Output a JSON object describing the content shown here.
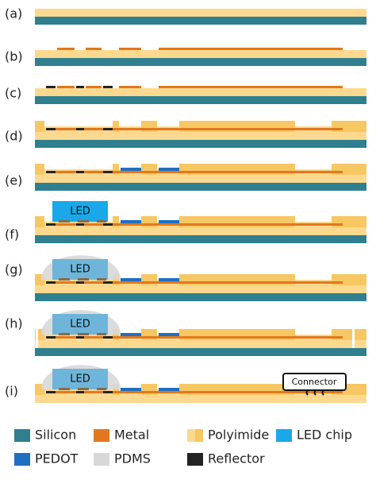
{
  "steps": [
    "(a)",
    "(b)",
    "(c)",
    "(d)",
    "(e)",
    "(f)",
    "(g)",
    "(h)",
    "(i)"
  ],
  "chip_labels": [
    "LED",
    "LED",
    "LED",
    "LED"
  ],
  "connector": "Connector",
  "legend": [
    "Silicon",
    "Metal",
    "Polyimide",
    "LED chip",
    "PEDOT",
    "PDMS",
    "Reflector"
  ]
}
